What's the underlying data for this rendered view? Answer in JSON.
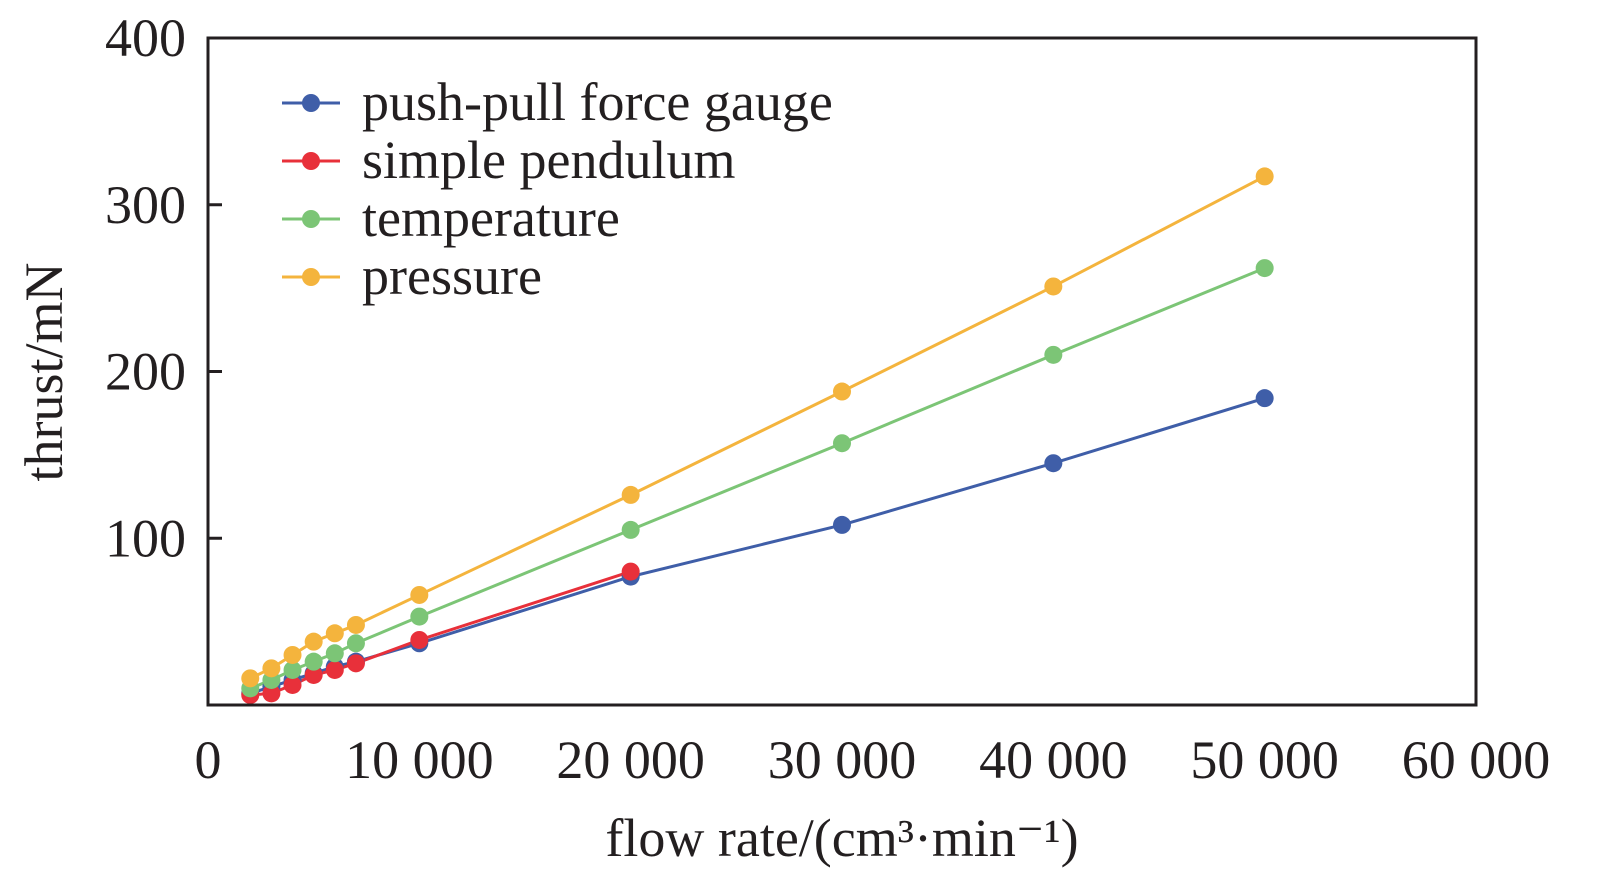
{
  "chart_data": {
    "type": "line",
    "title": "",
    "xlabel": "flow rate/(cm³·min⁻¹)",
    "ylabel": "thrust/mN",
    "xlim": [
      0,
      60000
    ],
    "ylim": [
      0,
      400
    ],
    "x_ticks": [
      {
        "value": 0,
        "label": "0"
      },
      {
        "value": 10000,
        "label": "10 000"
      },
      {
        "value": 20000,
        "label": "20 000"
      },
      {
        "value": 30000,
        "label": "30 000"
      },
      {
        "value": 40000,
        "label": "40 000"
      },
      {
        "value": 50000,
        "label": "50 000"
      },
      {
        "value": 60000,
        "label": "60 000"
      }
    ],
    "y_ticks": [
      {
        "value": 100,
        "label": "100"
      },
      {
        "value": 200,
        "label": "200"
      },
      {
        "value": 300,
        "label": "300"
      },
      {
        "value": 400,
        "label": "400"
      }
    ],
    "grid": false,
    "legend_position": "top-left",
    "series": [
      {
        "name": "push-pull force gauge",
        "color": "#3f5ea8",
        "x": [
          2000,
          3000,
          4000,
          5000,
          6000,
          7000,
          10000,
          20000,
          30000,
          40000,
          50000
        ],
        "y": [
          7,
          11,
          15,
          19,
          23,
          26,
          37,
          77,
          108,
          145,
          184
        ]
      },
      {
        "name": "simple pendulum",
        "color": "#e8303a",
        "x": [
          2000,
          3000,
          4000,
          5000,
          6000,
          7000,
          10000,
          20000
        ],
        "y": [
          6,
          7,
          12,
          18,
          21,
          25,
          39,
          80
        ]
      },
      {
        "name": "temperature",
        "color": "#7cc576",
        "x": [
          2000,
          3000,
          4000,
          5000,
          6000,
          7000,
          10000,
          20000,
          30000,
          40000,
          50000
        ],
        "y": [
          10,
          15,
          21,
          26,
          31,
          37,
          53,
          105,
          157,
          210,
          262
        ]
      },
      {
        "name": "pressure",
        "color": "#f4b43d",
        "x": [
          2000,
          3000,
          4000,
          5000,
          6000,
          7000,
          10000,
          20000,
          30000,
          40000,
          50000
        ],
        "y": [
          16,
          22,
          30,
          38,
          43,
          48,
          66,
          126,
          188,
          251,
          317
        ]
      }
    ]
  }
}
